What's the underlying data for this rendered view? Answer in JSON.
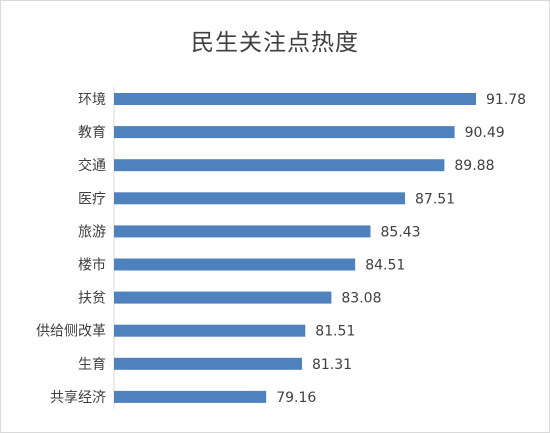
{
  "chart_data": {
    "type": "bar",
    "orientation": "horizontal",
    "title": "民生关注点热度",
    "xlabel": "",
    "ylabel": "",
    "categories": [
      "环境",
      "教育",
      "交通",
      "医疗",
      "旅游",
      "楼市",
      "扶贫",
      "供给侧改革",
      "生育",
      "共享经济"
    ],
    "values": [
      91.78,
      90.49,
      89.88,
      87.51,
      85.43,
      84.51,
      83.08,
      81.51,
      81.31,
      79.16
    ],
    "value_labels": [
      "91.78",
      "90.49",
      "89.88",
      "87.51",
      "85.43",
      "84.51",
      "83.08",
      "81.51",
      "81.31",
      "79.16"
    ],
    "xlim": [
      70,
      93
    ],
    "grid": false,
    "data_labels": true,
    "bar_color": "#4f81bd",
    "axis_color": "#d9d9d9",
    "text_color": "#404040"
  }
}
